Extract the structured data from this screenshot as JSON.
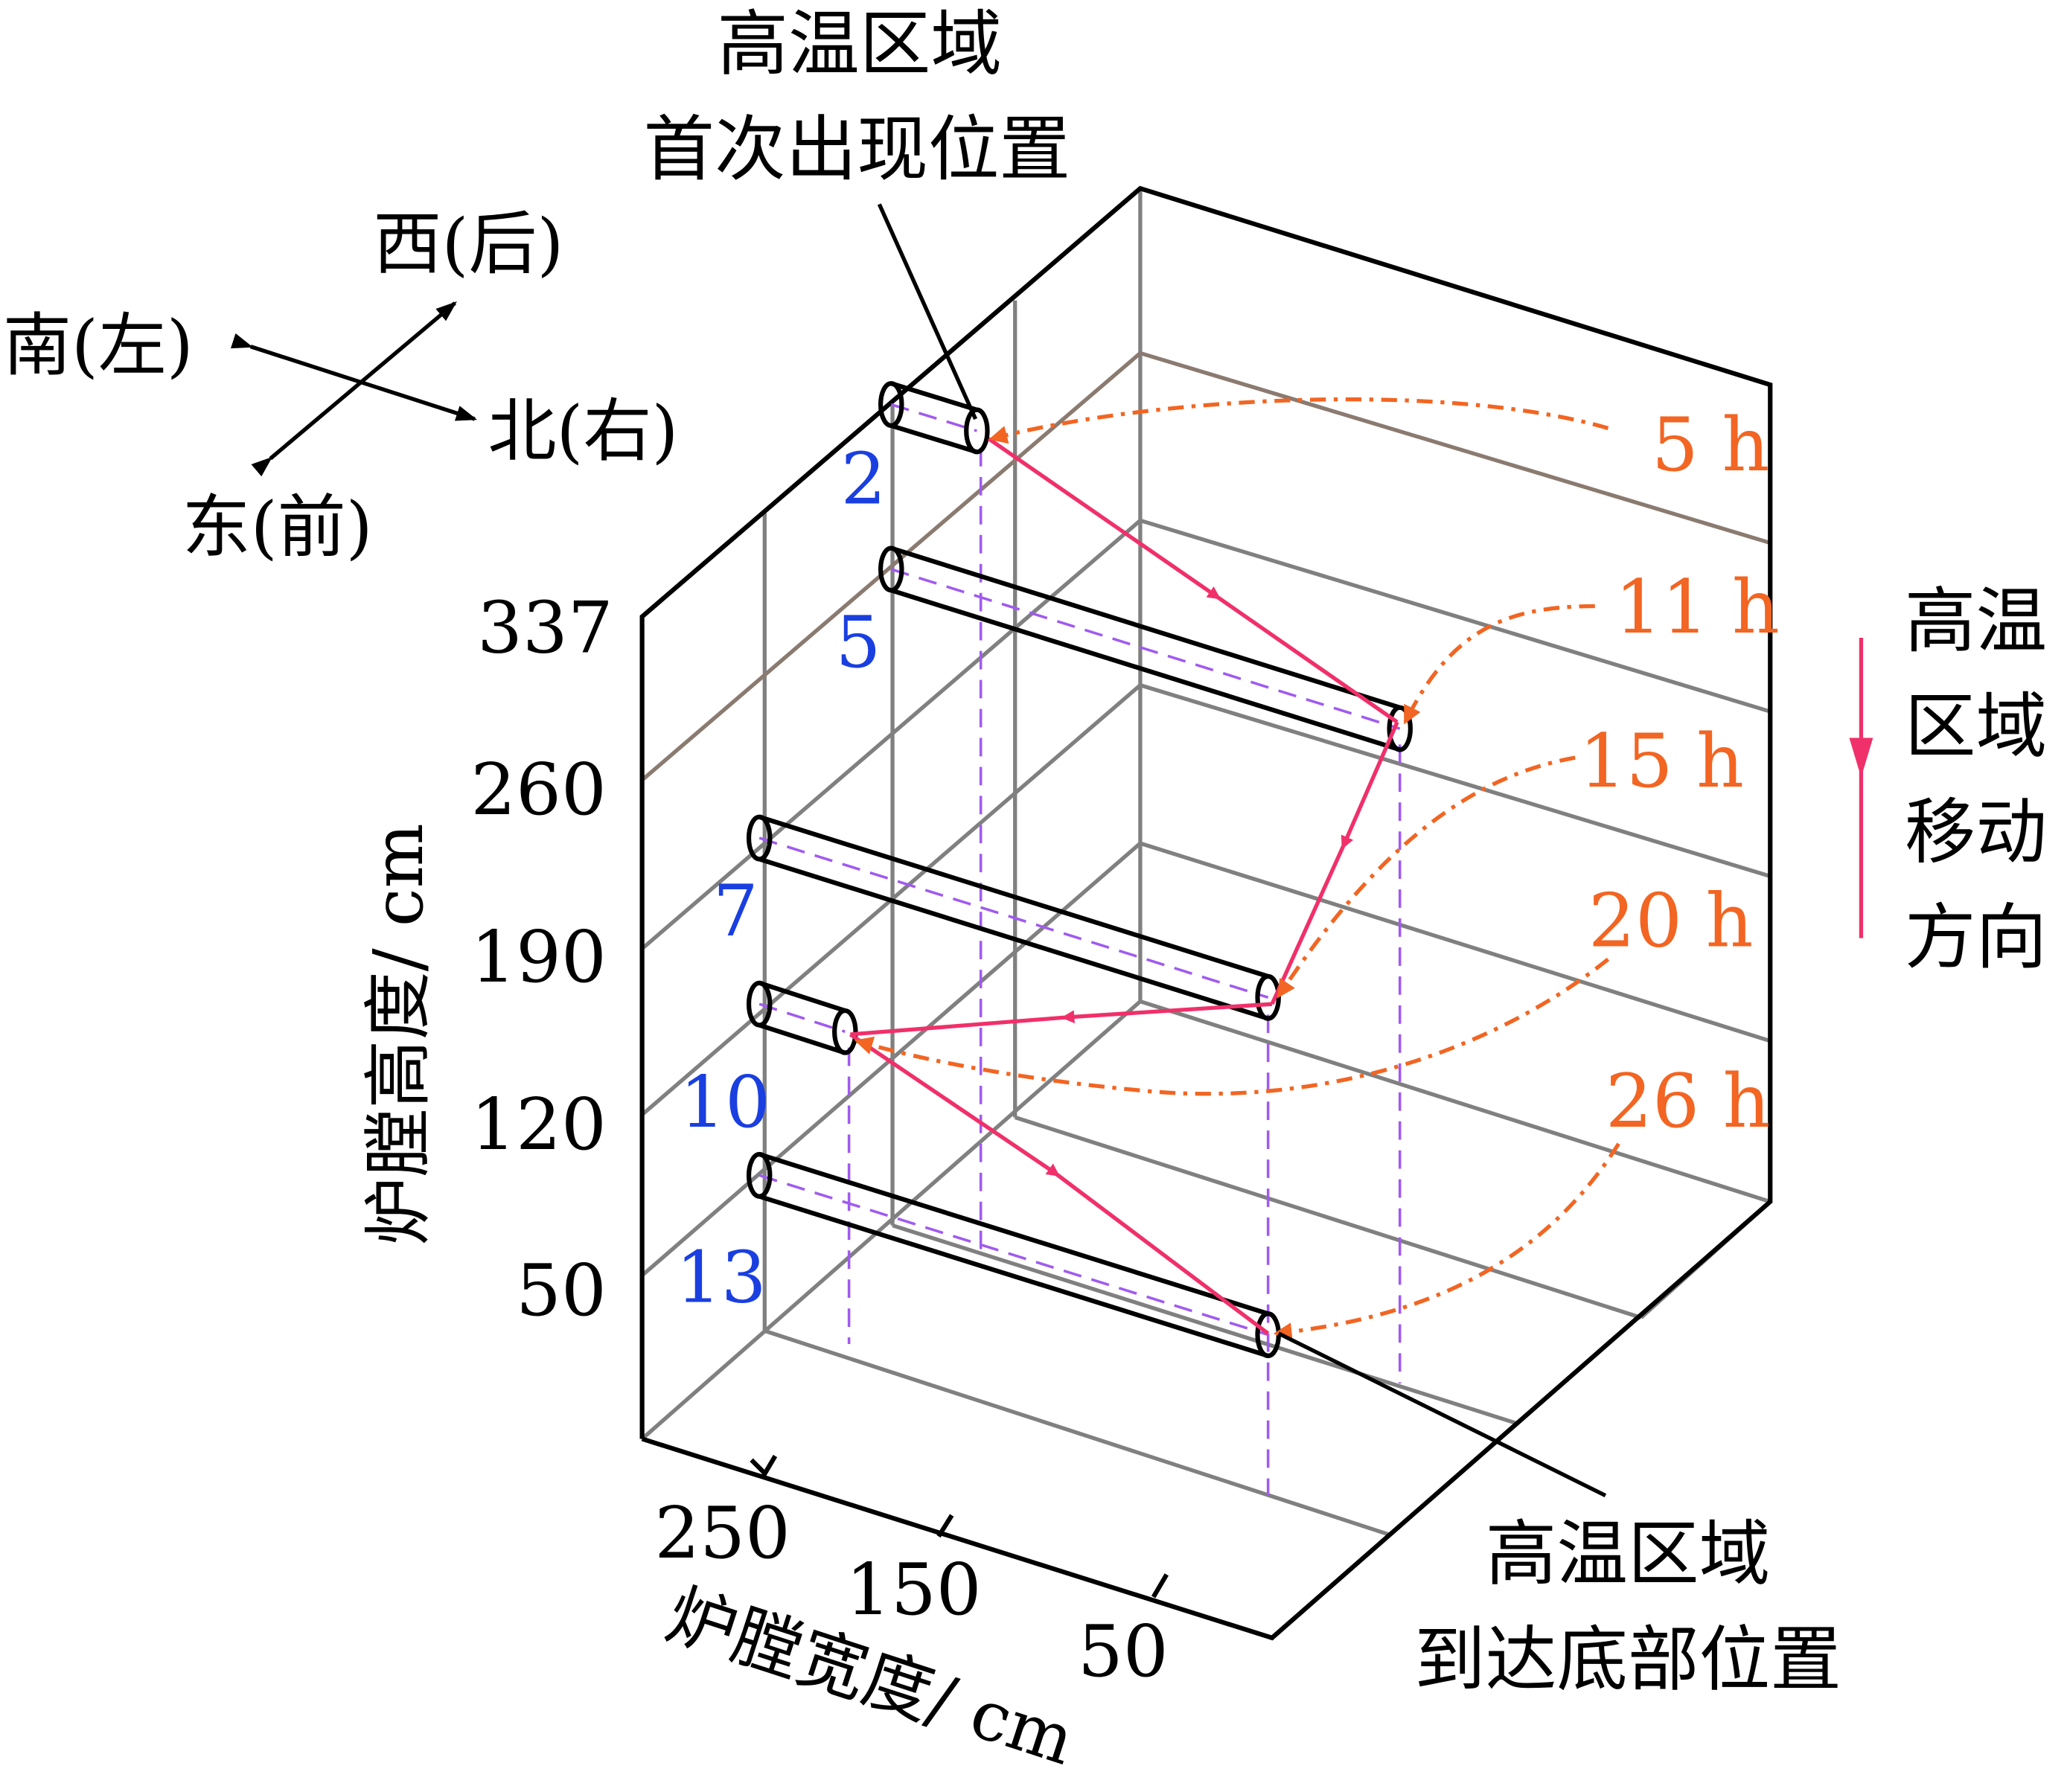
{
  "title_top": {
    "line1": "高温区域",
    "line2": "首次出现位置"
  },
  "title_bottom": {
    "line1": "高温区域",
    "line2": "到达底部位置"
  },
  "compass": {
    "west": "西(后)",
    "south": "南(左)",
    "north": "北(右)",
    "east": "东(前)"
  },
  "y_axis": {
    "label": "炉膛高度/ cm",
    "ticks": [
      "337",
      "260",
      "190",
      "120",
      "50"
    ]
  },
  "x_axis": {
    "label": "炉膛宽度/ cm",
    "ticks": [
      "250",
      "150",
      "50"
    ]
  },
  "cylinder_labels": [
    "2",
    "5",
    "7",
    "10",
    "13"
  ],
  "time_labels": [
    "5 h",
    "11 h",
    "15 h",
    "20 h",
    "26 h"
  ],
  "legend": {
    "lines": [
      "高温",
      "区域",
      "移动",
      "方向"
    ]
  },
  "colors": {
    "path": "#f0306a",
    "time": "#f26522",
    "number": "#1a3fe0",
    "dashed": "#a05af0"
  }
}
